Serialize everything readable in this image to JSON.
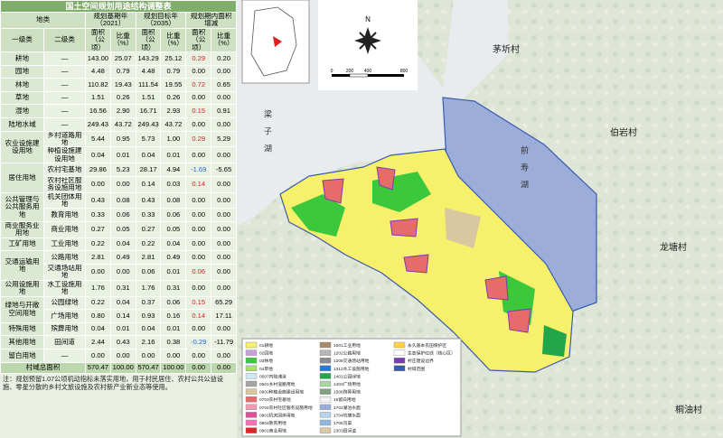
{
  "table": {
    "title": "国土空间规划用途结构调整表",
    "header": {
      "row1": [
        "地类",
        "规划基期年（2021）",
        "规划目标年（2035）",
        "规划期内面积增减"
      ],
      "row2": [
        "一级类",
        "二级类",
        "面积（公顷）",
        "比重（%）",
        "面积（公顷）",
        "比重（%）",
        "面积（公顷）",
        "比重（%）"
      ]
    },
    "groups": [
      {
        "category": "耕地",
        "items": [
          [
            "—",
            "143.00",
            "25.07",
            "143.29",
            "25.12",
            "0.29",
            "0.20"
          ]
        ]
      },
      {
        "category": "园地",
        "items": [
          [
            "—",
            "4.48",
            "0.79",
            "4.48",
            "0.79",
            "0.00",
            "0.00"
          ]
        ]
      },
      {
        "category": "林地",
        "items": [
          [
            "—",
            "110.82",
            "19.43",
            "111.54",
            "19.55",
            "0.72",
            "0.65"
          ]
        ]
      },
      {
        "category": "草地",
        "items": [
          [
            "—",
            "1.51",
            "0.26",
            "1.51",
            "0.26",
            "0.00",
            "0.00"
          ]
        ]
      },
      {
        "category": "湿地",
        "items": [
          [
            "—",
            "16.56",
            "2.90",
            "16.71",
            "2.93",
            "0.15",
            "0.91"
          ]
        ]
      },
      {
        "category": "陆地水域",
        "items": [
          [
            "—",
            "249.43",
            "43.72",
            "249.43",
            "43.72",
            "0.00",
            "0.00"
          ]
        ]
      },
      {
        "category": "农业设施建设用地",
        "items": [
          [
            "乡村道路用地",
            "5.44",
            "0.95",
            "5.73",
            "1.00",
            "0.29",
            "5.29"
          ],
          [
            "种植设施建设用地",
            "0.04",
            "0.01",
            "0.04",
            "0.01",
            "0.00",
            "0.00"
          ]
        ]
      },
      {
        "category": "居住用地",
        "items": [
          [
            "农村宅基地",
            "29.86",
            "5.23",
            "28.17",
            "4.94",
            "-1.69",
            "-5.65"
          ],
          [
            "农村社区服务设施用地",
            "0.00",
            "0.00",
            "0.14",
            "0.03",
            "0.14",
            "0.00"
          ]
        ]
      },
      {
        "category": "公共管理与公共服务用地",
        "items": [
          [
            "机关团体用地",
            "0.43",
            "0.08",
            "0.43",
            "0.08",
            "0.00",
            "0.00"
          ],
          [
            "教育用地",
            "0.33",
            "0.06",
            "0.33",
            "0.06",
            "0.00",
            "0.00"
          ]
        ]
      },
      {
        "category": "商业服务业用地",
        "items": [
          [
            "商业用地",
            "0.27",
            "0.05",
            "0.27",
            "0.05",
            "0.00",
            "0.00"
          ]
        ]
      },
      {
        "category": "工矿用地",
        "items": [
          [
            "工业用地",
            "0.22",
            "0.04",
            "0.22",
            "0.04",
            "0.00",
            "0.00"
          ]
        ]
      },
      {
        "category": "交通运输用地",
        "items": [
          [
            "公路用地",
            "2.81",
            "0.49",
            "2.81",
            "0.49",
            "0.00",
            "0.00"
          ],
          [
            "交通场站用地",
            "0.00",
            "0.00",
            "0.06",
            "0.01",
            "0.06",
            "0.00"
          ]
        ]
      },
      {
        "category": "公用设施用地",
        "items": [
          [
            "水工设施用地",
            "1.76",
            "0.31",
            "1.76",
            "0.31",
            "0.00",
            "0.00"
          ]
        ]
      },
      {
        "category": "绿地与开敞空间用地",
        "items": [
          [
            "公园绿地",
            "0.22",
            "0.04",
            "0.37",
            "0.06",
            "0.15",
            "65.29"
          ],
          [
            "广场用地",
            "0.80",
            "0.14",
            "0.93",
            "0.16",
            "0.14",
            "17.11"
          ]
        ]
      },
      {
        "category": "特殊用地",
        "items": [
          [
            "殡葬用地",
            "0.04",
            "0.01",
            "0.04",
            "0.01",
            "0.00",
            "0.00"
          ]
        ]
      },
      {
        "category": "其他用地",
        "items": [
          [
            "田间道",
            "2.44",
            "0.43",
            "2.16",
            "0.38",
            "-0.29",
            "-11.79"
          ]
        ]
      },
      {
        "category": "留白用地",
        "items": [
          [
            "—",
            "0.00",
            "0.00",
            "0.00",
            "0.00",
            "0.00",
            "0.00"
          ]
        ]
      }
    ],
    "total": {
      "label": "村域总面积",
      "values": [
        "570.47",
        "100.00",
        "570.47",
        "100.00",
        "0.00",
        "0.00"
      ]
    },
    "note": "注：规划预留1.07公顷机动指标未落实用地，用于村民居住、农村公共公益设施、零星分散的乡村文旅设施及农村新产业新业态等使用。"
  },
  "map": {
    "north": "N",
    "scale": [
      "0",
      "200",
      "400",
      "800"
    ],
    "lake_labels": [
      "梁子湖",
      "前寿湖"
    ],
    "villages": [
      "茅圻村",
      "伯岩村",
      "龙塘村",
      "桐油村"
    ],
    "legend": [
      [
        {
          "label": "01耕地",
          "color": "#f7f06a"
        },
        {
          "label": "02园地",
          "color": "#c9a0dc"
        },
        {
          "label": "03林地",
          "color": "#3cc83c"
        },
        {
          "label": "04草地",
          "color": "#a6e06a"
        },
        {
          "label": "0507内陆滩涂",
          "color": "#cfe7f5"
        },
        {
          "label": "0601乡村道路用地",
          "color": "#a4a4a4"
        },
        {
          "label": "0602种植设施建设用地",
          "color": "#d9c7a0"
        },
        {
          "label": "0703农村宅基地",
          "color": "#e66c6c"
        },
        {
          "label": "0704农村社区服务设施用地",
          "color": "#f09ab4"
        },
        {
          "label": "0801机关团体用地",
          "color": "#e04f9c"
        },
        {
          "label": "0804教育用地",
          "color": "#ff6fb3"
        },
        {
          "label": "0901商业用地",
          "color": "#d42a2a"
        }
      ],
      [
        {
          "label": "1001工业用地",
          "color": "#a58a6a"
        },
        {
          "label": "1202公路用地",
          "color": "#b5b5b5"
        },
        {
          "label": "1208交通场站用地",
          "color": "#8c8c8c"
        },
        {
          "label": "1312水工设施用地",
          "color": "#2a78d8"
        },
        {
          "label": "1401公园绿地",
          "color": "#22a64a"
        },
        {
          "label": "1403广场用地",
          "color": "#a8d8a0"
        },
        {
          "label": "1506殡葬用地",
          "color": "#7fa07f"
        },
        {
          "label": "16留白用地",
          "color": "#f2f2f2"
        },
        {
          "label": "1702湖泊水面",
          "color": "#9badd8"
        },
        {
          "label": "1704坑塘水面",
          "color": "#b9d3ea"
        },
        {
          "label": "1705沟渠",
          "color": "#8fb8e0"
        },
        {
          "label": "2303田间道",
          "color": "#d8c8a8"
        }
      ],
      [
        {
          "label": "永久基本农田保护区",
          "color": "#ffd24a"
        },
        {
          "label": "生态保护红线（核心区）",
          "color": "#ffffff"
        },
        {
          "label": "村庄建设边界",
          "color": "#7a3db0"
        },
        {
          "label": "村域范围",
          "color": "#3a5ab0"
        }
      ]
    ]
  }
}
